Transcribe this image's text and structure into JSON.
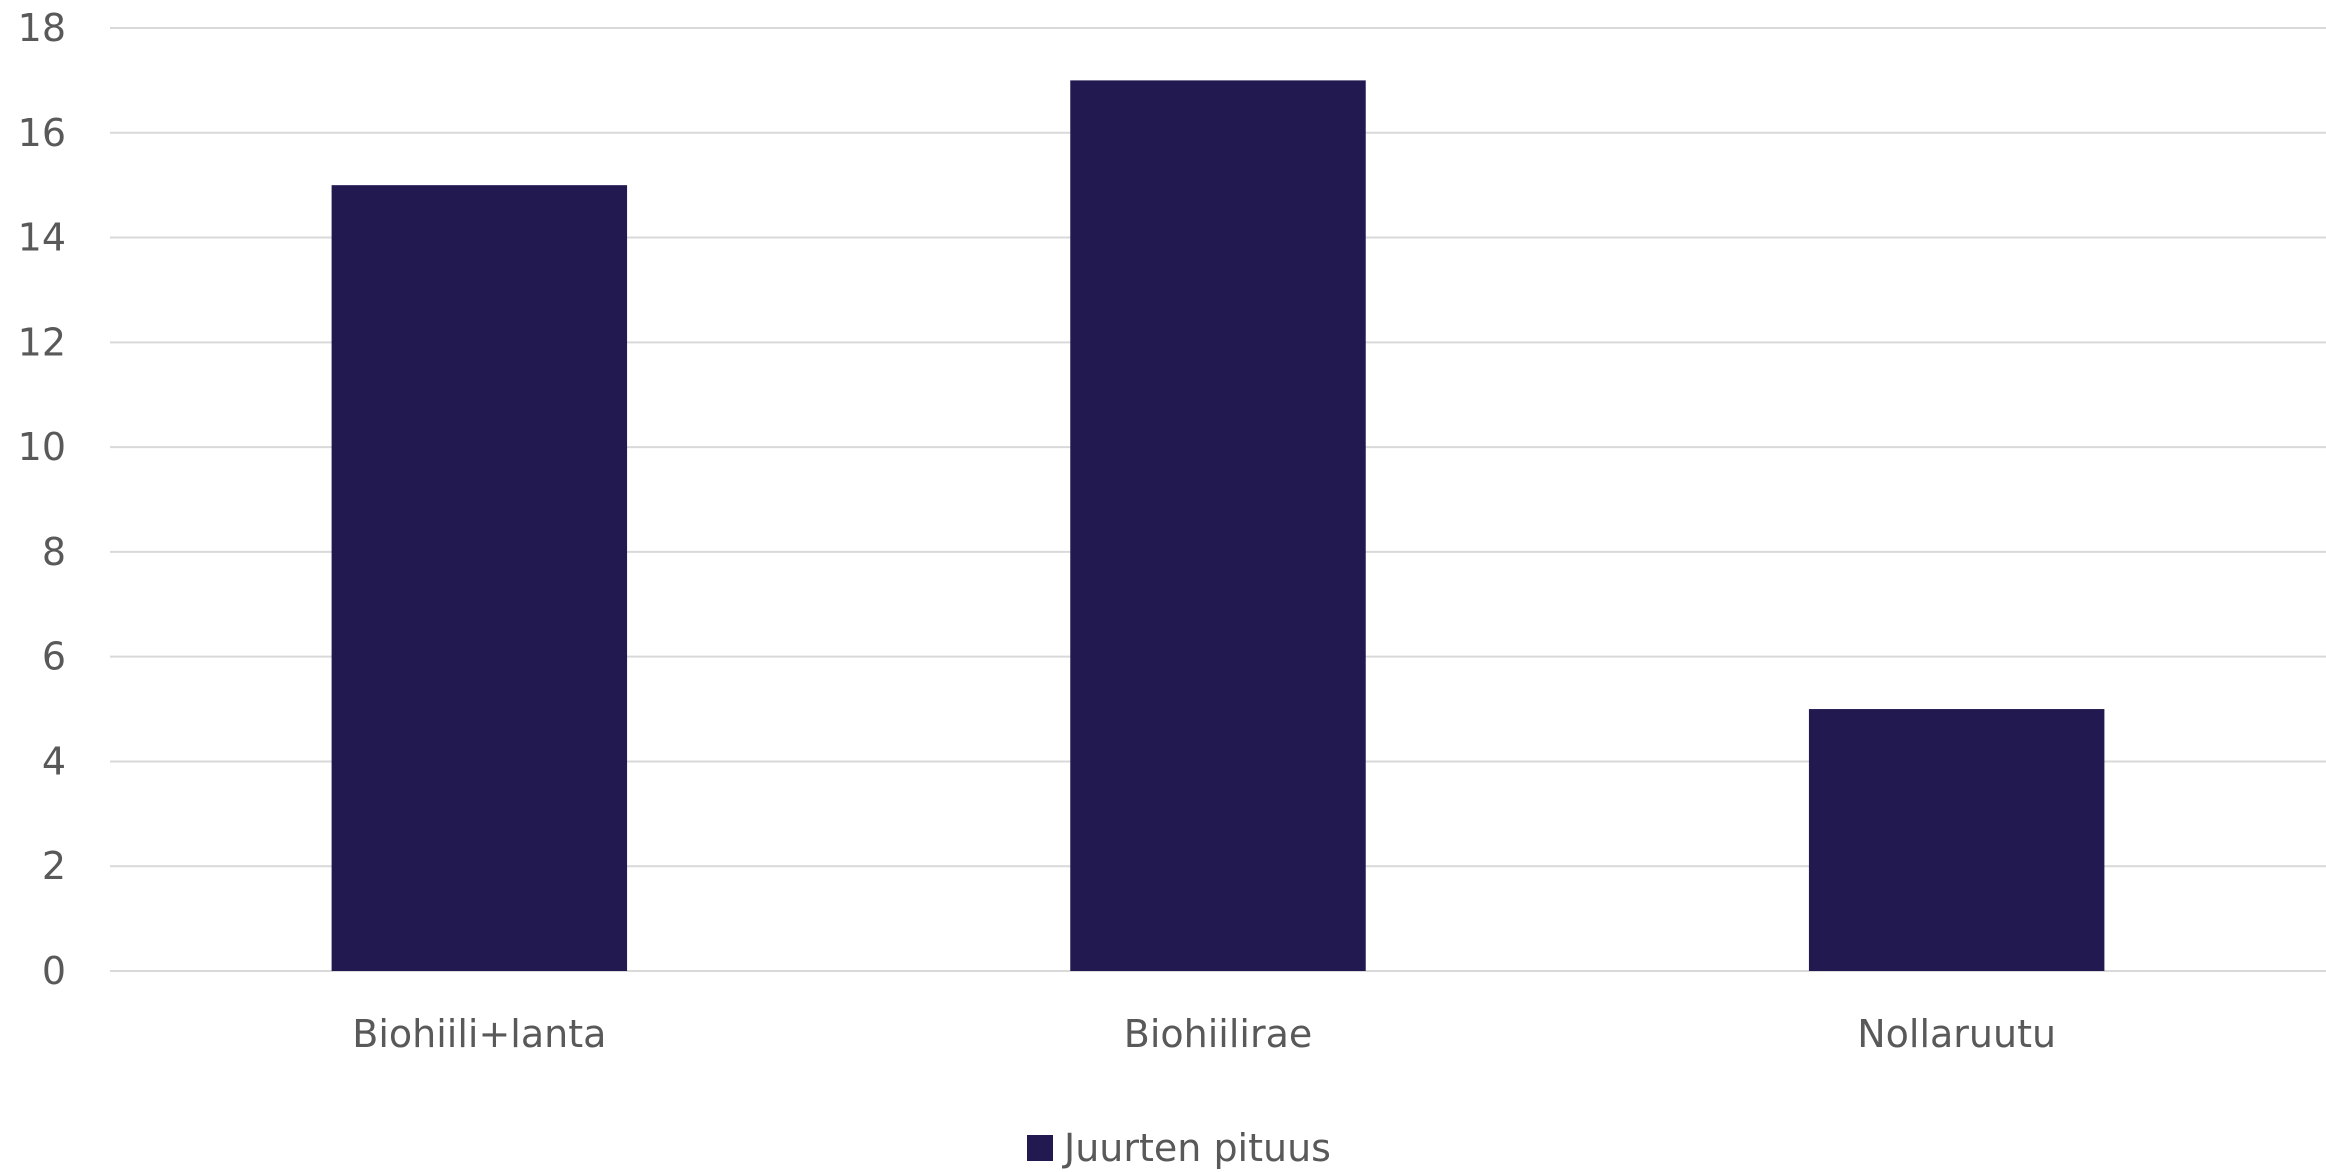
{
  "chart_data": {
    "type": "bar",
    "categories": [
      "Biohiili+lanta",
      "Biohiilirae",
      "Nollaruutu"
    ],
    "series": [
      {
        "name": "Juurten pituus",
        "values": [
          15,
          17,
          5
        ],
        "color": "#21194F"
      }
    ],
    "y_ticks": [
      "0",
      "2",
      "4",
      "6",
      "8",
      "10",
      "12",
      "14",
      "16",
      "18"
    ],
    "ylim": [
      0,
      18
    ],
    "grid": true,
    "legend_position": "bottom"
  }
}
